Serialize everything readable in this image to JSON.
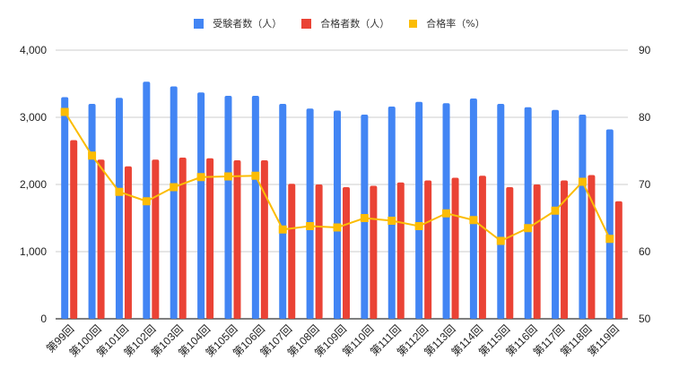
{
  "legend": {
    "items": [
      {
        "label": "受験者数（人）",
        "color": "#4285f4"
      },
      {
        "label": "合格者数（人）",
        "color": "#ea4335"
      },
      {
        "label": "合格率（%）",
        "color": "#fbbc04"
      }
    ]
  },
  "axes": {
    "left_ticks": [
      "4,000",
      "3,000",
      "2,000",
      "1,000",
      "0"
    ],
    "right_ticks": [
      "90",
      "80",
      "70",
      "60",
      "50"
    ]
  },
  "chart_data": {
    "type": "bar",
    "title": "",
    "xlabel": "",
    "ylabel": "",
    "categories": [
      "第99回",
      "第100回",
      "第101回",
      "第102回",
      "第103回",
      "第104回",
      "第105回",
      "第106回",
      "第107回",
      "第108回",
      "第109回",
      "第110回",
      "第111回",
      "第112回",
      "第113回",
      "第114回",
      "第115回",
      "第116回",
      "第117回",
      "第118回",
      "第119回"
    ],
    "series": [
      {
        "name": "受験者数（人）",
        "type": "bar",
        "axis": "left",
        "color": "#4285f4",
        "values": [
          3300,
          3200,
          3290,
          3530,
          3460,
          3370,
          3320,
          3320,
          3200,
          3130,
          3100,
          3040,
          3160,
          3230,
          3210,
          3280,
          3200,
          3150,
          3110,
          3040,
          2820
        ]
      },
      {
        "name": "合格者数（人）",
        "type": "bar",
        "axis": "left",
        "color": "#ea4335",
        "values": [
          2660,
          2370,
          2270,
          2370,
          2400,
          2390,
          2360,
          2360,
          2010,
          2000,
          1960,
          1980,
          2030,
          2060,
          2100,
          2130,
          1960,
          2000,
          2060,
          2140,
          1750
        ]
      },
      {
        "name": "合格率（%）",
        "type": "line",
        "axis": "right",
        "color": "#fbbc04",
        "values": [
          80.8,
          74.3,
          68.9,
          67.5,
          69.6,
          71.1,
          71.2,
          71.3,
          63.3,
          63.8,
          63.6,
          65.0,
          64.6,
          63.8,
          65.7,
          64.7,
          61.6,
          63.5,
          66.1,
          70.4,
          61.9
        ]
      }
    ],
    "ylim": [
      0,
      4000
    ],
    "y2lim": [
      50,
      90
    ],
    "grid": true,
    "legend_position": "top"
  }
}
